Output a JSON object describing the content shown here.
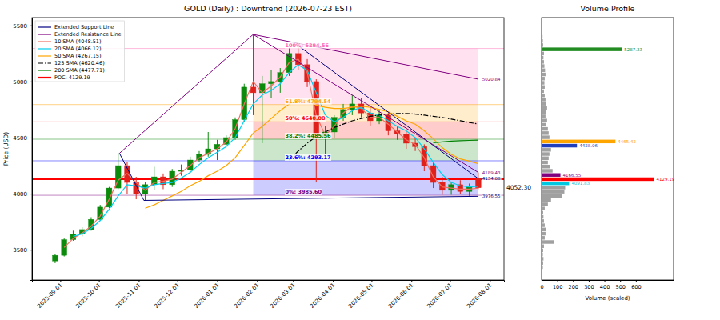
{
  "chart_data": [
    {
      "type": "candlestick",
      "title": "GOLD (Daily) : Downtrend (2026-07-23 EST)",
      "y_label": "Price (USD)",
      "x": [
        "2025-08-28",
        "2025-09-04",
        "2025-09-11",
        "2025-09-18",
        "2025-09-25",
        "2025-10-02",
        "2025-10-09",
        "2025-10-16",
        "2025-10-23",
        "2025-10-30",
        "2025-11-06",
        "2025-11-13",
        "2025-11-20",
        "2025-11-27",
        "2025-12-04",
        "2025-12-11",
        "2025-12-18",
        "2025-12-25",
        "2026-01-01",
        "2026-01-08",
        "2026-01-15",
        "2026-01-22",
        "2026-01-29",
        "2026-02-05",
        "2026-02-12",
        "2026-02-19",
        "2026-02-26",
        "2026-03-05",
        "2026-03-12",
        "2026-03-19",
        "2026-03-26",
        "2026-04-02",
        "2026-04-09",
        "2026-04-16",
        "2026-04-23",
        "2026-04-30",
        "2026-05-07",
        "2026-05-14",
        "2026-05-21",
        "2026-05-28",
        "2026-06-04",
        "2026-06-11",
        "2026-06-18",
        "2026-06-25",
        "2026-07-02",
        "2026-07-09",
        "2026-07-16",
        "2026-07-23"
      ],
      "open": [
        3400,
        3450,
        3590,
        3640,
        3680,
        3770,
        3880,
        4050,
        4250,
        4100,
        4000,
        4080,
        4150,
        4080,
        4200,
        4210,
        4300,
        4350,
        4400,
        4440,
        4500,
        4660,
        4950,
        4900,
        4980,
        5000,
        5080,
        5250,
        5150,
        5000,
        4500,
        4550,
        4680,
        4750,
        4800,
        4720,
        4650,
        4700,
        4560,
        4530,
        4450,
        4420,
        4250,
        4100,
        4030,
        4080,
        4020,
        4140
      ],
      "high": [
        3460,
        3600,
        3670,
        3700,
        3790,
        3900,
        4060,
        4360,
        4280,
        4150,
        4100,
        4240,
        4180,
        4220,
        4260,
        4330,
        4380,
        4550,
        4480,
        4520,
        4680,
        4980,
        5420,
        5050,
        5100,
        5120,
        5300,
        5320,
        5200,
        5020,
        4600,
        4700,
        4800,
        4880,
        4850,
        4780,
        4750,
        4720,
        4600,
        4560,
        4500,
        4440,
        4280,
        4150,
        4100,
        4120,
        4090,
        4190
      ],
      "low": [
        3380,
        3440,
        3580,
        3620,
        3670,
        3760,
        3870,
        4040,
        4000,
        3950,
        3940,
        4030,
        4040,
        4060,
        4160,
        4190,
        4280,
        4330,
        4300,
        4420,
        4480,
        4640,
        4700,
        4450,
        4850,
        4900,
        5050,
        5100,
        4950,
        4100,
        4350,
        4500,
        4650,
        4700,
        4680,
        4600,
        4620,
        4520,
        4480,
        4400,
        4380,
        4200,
        4050,
        3990,
        3990,
        4000,
        3980,
        4040
      ],
      "close": [
        3450,
        3590,
        3640,
        3680,
        3770,
        3880,
        4050,
        4250,
        4100,
        4000,
        4080,
        4150,
        4080,
        4200,
        4210,
        4300,
        4350,
        4400,
        4440,
        4500,
        4660,
        4950,
        4900,
        4980,
        5000,
        5080,
        5250,
        5150,
        5000,
        4500,
        4550,
        4680,
        4750,
        4800,
        4720,
        4650,
        4700,
        4560,
        4530,
        4450,
        4420,
        4250,
        4100,
        4030,
        4080,
        4020,
        4060,
        4052.3
      ],
      "series": [
        {
          "name": "10 SMA (4048.51)",
          "color": "#f07060",
          "line_style": "solid",
          "values": [
            null,
            3520,
            3600,
            3650,
            3710,
            3800,
            3950,
            4120,
            4180,
            4100,
            4030,
            4100,
            4110,
            4130,
            4190,
            4250,
            4320,
            4360,
            4400,
            4460,
            4580,
            4800,
            5000,
            4900,
            4960,
            5040,
            5170,
            5200,
            5080,
            4700,
            4520,
            4600,
            4720,
            4780,
            4760,
            4680,
            4680,
            4620,
            4550,
            4480,
            4440,
            4320,
            4150,
            4060,
            4050,
            4040,
            4040,
            4048.51
          ]
        },
        {
          "name": "20 SMA (4066.12)",
          "color": "#00d0f0",
          "line_style": "solid",
          "values": [
            null,
            null,
            3620,
            3640,
            3690,
            3760,
            3860,
            3980,
            4080,
            4070,
            4050,
            4080,
            4090,
            4100,
            4140,
            4190,
            4260,
            4320,
            4370,
            4420,
            4500,
            4650,
            4800,
            4880,
            4920,
            4980,
            5080,
            5150,
            5100,
            4900,
            4700,
            4640,
            4680,
            4740,
            4770,
            4720,
            4700,
            4650,
            4600,
            4560,
            4500,
            4400,
            4280,
            4170,
            4100,
            4070,
            4060,
            4066.12
          ]
        },
        {
          "name": "50 SMA (4267.15)",
          "color": "#ffa500",
          "line_style": "solid",
          "values": [
            null,
            null,
            null,
            null,
            null,
            null,
            null,
            null,
            null,
            null,
            3870,
            3900,
            3940,
            3980,
            4020,
            4070,
            4110,
            4160,
            4200,
            4250,
            4320,
            4430,
            4540,
            4600,
            4670,
            4740,
            4800,
            4840,
            4830,
            4790,
            4770,
            4760,
            4760,
            4770,
            4780,
            4770,
            4750,
            4730,
            4690,
            4650,
            4620,
            4560,
            4490,
            4410,
            4350,
            4310,
            4290,
            4267.15
          ]
        },
        {
          "name": "125 SMA (4620.46)",
          "color": "#000000",
          "line_style": "dashdot",
          "values": [
            null,
            null,
            null,
            null,
            null,
            null,
            null,
            null,
            null,
            null,
            null,
            null,
            null,
            null,
            null,
            null,
            null,
            null,
            null,
            null,
            null,
            null,
            null,
            null,
            null,
            null,
            4300,
            4380,
            4450,
            4510,
            4550,
            4590,
            4620,
            4650,
            4670,
            4690,
            4700,
            4710,
            4715,
            4715,
            4710,
            4700,
            4690,
            4680,
            4665,
            4650,
            4635,
            4620.46
          ]
        },
        {
          "name": "200 SMA (4477.71)",
          "color": "#008000",
          "line_style": "solid",
          "values": [
            null,
            null,
            null,
            null,
            null,
            null,
            null,
            null,
            null,
            null,
            null,
            null,
            null,
            null,
            null,
            null,
            null,
            null,
            null,
            null,
            null,
            null,
            null,
            null,
            null,
            null,
            null,
            null,
            null,
            null,
            null,
            null,
            null,
            null,
            null,
            null,
            null,
            null,
            null,
            null,
            null,
            null,
            4455,
            4462,
            4468,
            4472,
            4475,
            4477.71
          ]
        }
      ],
      "trendlines": [
        {
          "name": "Extended Support Line",
          "color": "#000080",
          "x": [
            "2025-10-17",
            "2025-11-05",
            "2026-07-23"
          ],
          "values": [
            4360,
            3940,
            3976.55
          ]
        },
        {
          "name": "Extended Support Line",
          "color": "#000080",
          "x": [
            "2026-03-05",
            "2026-07-23"
          ],
          "values": [
            5320,
            4134.08
          ]
        },
        {
          "name": "Extended Resistance Line",
          "color": "#800080",
          "x": [
            "2025-10-17",
            "2026-01-29",
            "2026-07-23"
          ],
          "values": [
            4360,
            5420,
            4189.43
          ]
        },
        {
          "name": "Extended Resistance Line",
          "color": "#800080",
          "x": [
            "2026-01-29",
            "2026-07-23"
          ],
          "values": [
            5420,
            5020.84
          ]
        }
      ],
      "fib_levels": [
        {
          "label": "0%: 3985.60",
          "value": 3985.6,
          "color": "#800080"
        },
        {
          "label": "23.6%: 4293.17",
          "value": 4293.17,
          "color": "#0000ff"
        },
        {
          "label": "38.2%: 4485.56",
          "value": 4485.56,
          "color": "#008000"
        },
        {
          "label": "50%: 4640.08",
          "value": 4640.08,
          "color": "#ff0000"
        },
        {
          "label": "61.8%: 4794.54",
          "value": 4794.54,
          "color": "#ffa500"
        },
        {
          "label": "100%: 5294.56",
          "value": 5294.56,
          "color": "#ff69b4"
        }
      ],
      "fib_range": [
        "2026-01-29",
        "2026-07-23"
      ],
      "poc": {
        "name": "POC: 4129.19",
        "value": 4129.19,
        "color": "#ff0000"
      },
      "last_price": {
        "value": 4052.3,
        "label": "4052.30"
      },
      "xlim": [
        "2025-08-10",
        "2026-08-12"
      ],
      "xticks": [
        "2025-09-01",
        "2025-10-01",
        "2025-11-01",
        "2025-12-01",
        "2026-01-01",
        "2026-02-01",
        "2026-03-01",
        "2026-04-01",
        "2026-05-01",
        "2026-06-01",
        "2026-07-01",
        "2026-08-01"
      ],
      "ylim": [
        3230,
        5570
      ],
      "yticks": [
        3500,
        4000,
        4500,
        5000,
        5500
      ],
      "legend": "upper left",
      "grid": false
    },
    {
      "type": "bar",
      "orientation": "horizontal",
      "title": "Volume Profile",
      "x_label": "Volume (scaled)",
      "color": "#a0a0a0",
      "y": [
        3344.63,
        3381.99,
        3419.35,
        3456.71,
        3494.07,
        3531.43,
        3568.79,
        3606.15,
        3643.51,
        3680.87,
        3718.23,
        3755.59,
        3792.95,
        3830.31,
        3867.67,
        3905.03,
        3942.39,
        3979.75,
        4017.11,
        4054.47,
        4203.91,
        4241.27,
        4278.63,
        4315.99,
        4353.35,
        4390.71,
        4502.79,
        4540.15,
        4577.51,
        4614.87,
        4652.23,
        4689.59,
        4726.95,
        4764.31,
        4801.67,
        4839.03,
        4876.39,
        4913.75,
        4951.11,
        4988.47,
        5025.83,
        5063.19,
        5100.55,
        5137.91,
        5175.27,
        5212.63,
        5249.99,
        5324.71,
        5362.07,
        5399.43,
        5436.79
      ],
      "values": [
        8,
        10,
        12,
        8,
        10,
        15,
        80,
        20,
        25,
        30,
        20,
        15,
        12,
        10,
        20,
        40,
        60,
        130,
        145,
        150,
        70,
        55,
        40,
        45,
        50,
        60,
        50,
        45,
        40,
        30,
        35,
        25,
        30,
        35,
        30,
        25,
        20,
        15,
        20,
        18,
        20,
        25,
        22,
        18,
        15,
        12,
        15,
        10,
        8,
        6,
        5
      ],
      "key_levels": [
        {
          "y": 5287.33,
          "value": 510,
          "color": "#228b22"
        },
        {
          "y": 4465.42,
          "value": 470,
          "color": "#ffa500"
        },
        {
          "y": 4428.06,
          "value": 225,
          "color": "#1f3fbf"
        },
        {
          "y": 4166.55,
          "value": 120,
          "color": "#800080"
        },
        {
          "y": 4129.19,
          "value": 715,
          "color": "#ff0000"
        },
        {
          "y": 4091.83,
          "value": 175,
          "color": "#00c8e0"
        }
      ],
      "xlim": [
        0,
        840
      ],
      "xticks": [
        0,
        100,
        200,
        300,
        400,
        500,
        600
      ],
      "ylim": [
        3230,
        5570
      ],
      "tick_labels": "x",
      "grid": false
    }
  ]
}
